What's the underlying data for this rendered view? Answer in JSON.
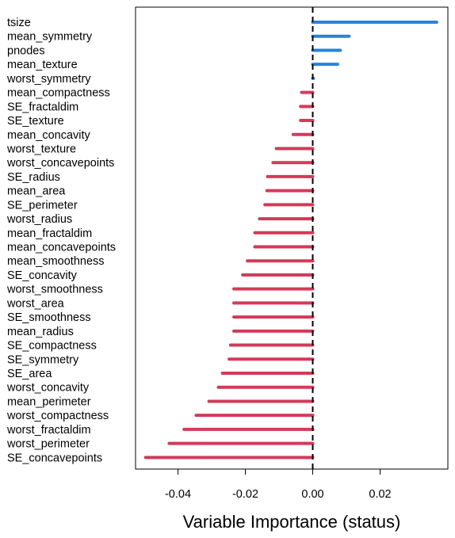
{
  "chart_data": {
    "type": "bar",
    "orientation": "horizontal",
    "xlabel": "Variable Importance (status)",
    "xlim": [
      -0.05,
      0.04
    ],
    "xticks": [
      -0.04,
      -0.02,
      0.0,
      0.02
    ],
    "xtick_labels": [
      "-0.04",
      "-0.02",
      "0.00",
      "0.02"
    ],
    "reference_line": 0.0,
    "positive_color": "#2A82D9",
    "negative_color": "#D33A5A",
    "grid": false,
    "categories": [
      "tsize",
      "mean_symmetry",
      "pnodes",
      "mean_texture",
      "worst_symmetry",
      "mean_compactness",
      "SE_fractaldim",
      "SE_texture",
      "mean_concavity",
      "worst_texture",
      "worst_concavepoints",
      "SE_radius",
      "mean_area",
      "SE_perimeter",
      "worst_radius",
      "mean_fractaldim",
      "mean_concavepoints",
      "mean_smoothness",
      "SE_concavity",
      "worst_smoothness",
      "worst_area",
      "SE_smoothness",
      "mean_radius",
      "SE_compactness",
      "SE_symmetry",
      "SE_area",
      "worst_concavity",
      "mean_perimeter",
      "worst_compactness",
      "worst_fractaldim",
      "worst_perimeter",
      "SE_concavepoints"
    ],
    "values": [
      0.0368,
      0.0108,
      0.0082,
      0.0074,
      0.0002,
      -0.0033,
      -0.0036,
      -0.0036,
      -0.0058,
      -0.0108,
      -0.0118,
      -0.0134,
      -0.0136,
      -0.0142,
      -0.0158,
      -0.0172,
      -0.0172,
      -0.0194,
      -0.0208,
      -0.0234,
      -0.0234,
      -0.0234,
      -0.0234,
      -0.0244,
      -0.0248,
      -0.0268,
      -0.028,
      -0.0308,
      -0.0346,
      -0.0382,
      -0.0426,
      -0.0496
    ]
  }
}
